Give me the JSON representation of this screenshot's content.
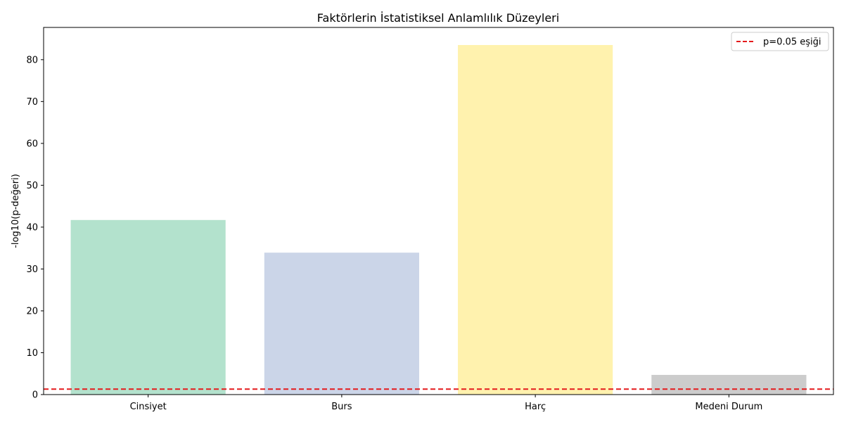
{
  "chart_data": {
    "type": "bar",
    "title": "Faktörlerin İstatistiksel Anlamlılık Düzeyleri",
    "xlabel": "",
    "ylabel": "-log10(p-değeri)",
    "categories": [
      "Cinsiyet",
      "Burs",
      "Harç",
      "Medeni Durum"
    ],
    "values": [
      41.7,
      33.9,
      83.5,
      4.7
    ],
    "colors": [
      "#b3e2cd",
      "#cbd5e8",
      "#fff2ae",
      "#cccccc"
    ],
    "ylim": [
      0,
      87.7
    ],
    "yticks": [
      0,
      10,
      20,
      30,
      40,
      50,
      60,
      70,
      80
    ],
    "threshold": {
      "value": 1.301,
      "label": "p=0.05 eşiği",
      "color": "#e41a1c",
      "style": "dashed"
    },
    "grid": false,
    "legend": {
      "position": "top-right",
      "entries": [
        "p=0.05 eşiği"
      ]
    }
  }
}
